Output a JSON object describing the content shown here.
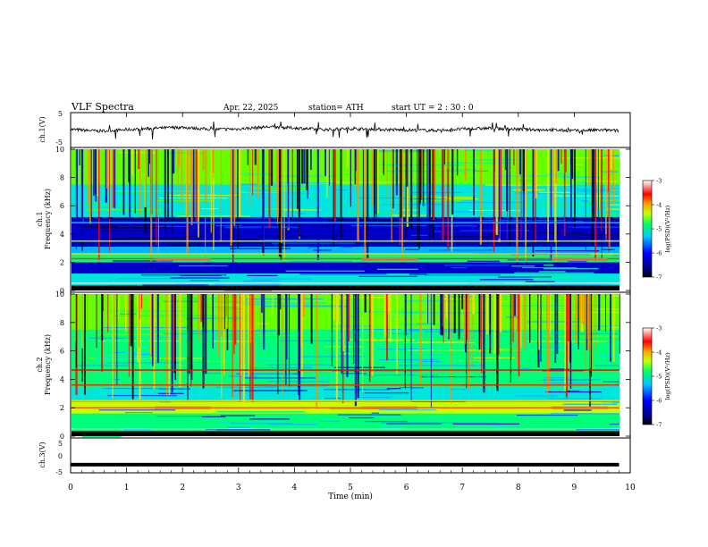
{
  "header": {
    "title": "VLF  Spectra",
    "date": "Apr. 22, 2025",
    "station": "station= ATH",
    "start_ut": "start  UT  =   2  : 30 : 0"
  },
  "colors": {
    "spectrum_scale": [
      "#000000",
      "#000080",
      "#0000ff",
      "#00c8ff",
      "#00ff64",
      "#c8ff00",
      "#ffa000",
      "#ff0000",
      "#ffffff"
    ]
  },
  "chart_data": [
    {
      "id": "ch1_waveform",
      "type": "line",
      "ylabel": "ch.1(V)",
      "ylim": [
        -5,
        5
      ],
      "yticks": [
        "5",
        "-5"
      ],
      "xlim": [
        0,
        10
      ],
      "x": [
        0,
        0.5,
        1,
        1.5,
        2,
        2.5,
        3,
        3.5,
        4,
        4.5,
        5,
        5.5,
        6,
        6.5,
        7,
        7.5,
        8,
        8.5,
        9,
        9.5,
        9.8
      ],
      "y": [
        0.2,
        -0.3,
        0.1,
        0.5,
        0.8,
        0.2,
        0.3,
        0.9,
        0.6,
        0.1,
        0.4,
        0.2,
        0.0,
        -0.1,
        0.3,
        0.5,
        0.2,
        0.1,
        -0.2,
        0.0,
        -0.2
      ]
    },
    {
      "id": "ch1_spectrogram",
      "type": "heatmap",
      "ylabel": "ch.1",
      "ylabel2": "Frequency  (kHz)",
      "ylim": [
        0,
        10
      ],
      "yticks": [
        "0",
        "2",
        "4",
        "6",
        "8",
        "10"
      ],
      "colorbar": {
        "label": "log(PSD)(V²/Hz)",
        "ticks": [
          "-3",
          "-4",
          "-5",
          "-6",
          "-7"
        ],
        "range": [
          -7,
          -3
        ]
      }
    },
    {
      "id": "ch2_spectrogram",
      "type": "heatmap",
      "ylabel": "ch.2",
      "ylabel2": "Frequency  (kHz)",
      "ylim": [
        0,
        10
      ],
      "yticks": [
        "0",
        "2",
        "4",
        "6",
        "8",
        "10"
      ],
      "colorbar": {
        "label": "log(PSD)(V²/Hz)",
        "ticks": [
          "-3",
          "-4",
          "-5",
          "-6",
          "-7"
        ],
        "range": [
          -7,
          -3
        ]
      }
    },
    {
      "id": "ch3_waveform",
      "type": "line",
      "ylabel": "ch.3(V)",
      "ylim": [
        -5,
        5
      ],
      "yticks": [
        "5",
        "0",
        "-5"
      ],
      "xlim": [
        0,
        10
      ],
      "x": [
        0,
        9.8
      ],
      "y": [
        -2.3,
        -2.3
      ]
    }
  ],
  "xaxis": {
    "label": "Time  (min)",
    "ticks": [
      "0",
      "1",
      "2",
      "3",
      "4",
      "5",
      "6",
      "7",
      "8",
      "9",
      "10"
    ]
  }
}
